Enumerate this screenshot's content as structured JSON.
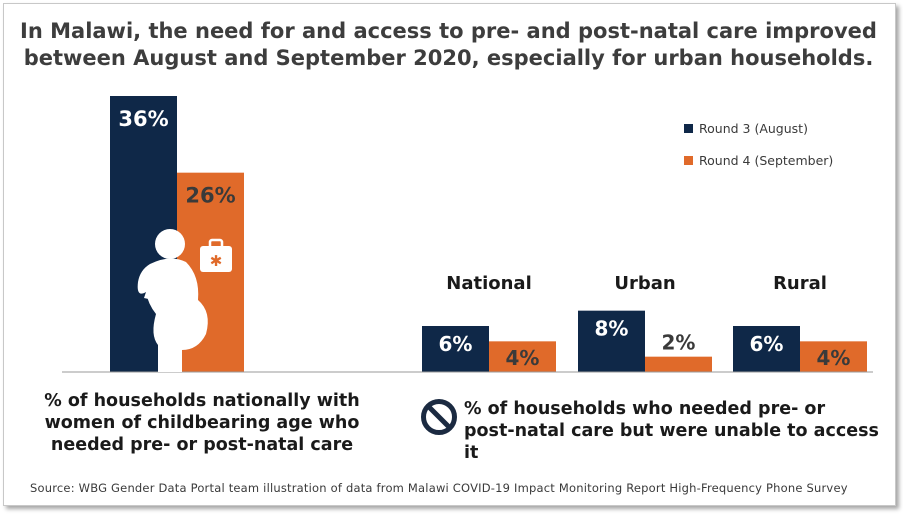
{
  "title_line1": "In Malawi, the need for and access to pre- and post-natal care improved",
  "title_line2": "between August and September 2020, especially for urban households.",
  "colors": {
    "round3": "#0f2848",
    "round4": "#e06a2a",
    "white": "#ffffff",
    "text": "#3a3a3a"
  },
  "legend": [
    {
      "label": "Round 3 (August)",
      "color": "#0f2848"
    },
    {
      "label": "Round 4 (September)",
      "color": "#e06a2a"
    }
  ],
  "caption_left": "% of households nationally with women of childbearing age who needed pre- or post-natal care",
  "caption_right": "% of households who needed pre- or post-natal care but were unable to access it",
  "source": "Source:  WBG Gender Data Portal team illustration  of data from  Malawi  COVID-19  Impact Monitoring Report High-Frequency  Phone Survey",
  "icons": [
    "pregnant-woman-icon",
    "medical-kit-icon",
    "no-access-icon"
  ],
  "chart_data": [
    {
      "type": "bar",
      "categories": [
        ""
      ],
      "series": [
        {
          "name": "Round 3 (August)",
          "values": [
            36
          ],
          "labels": [
            "36%"
          ]
        },
        {
          "name": "Round 4 (September)",
          "values": [
            26
          ],
          "labels": [
            "26%"
          ]
        }
      ],
      "ylim": [
        0,
        36
      ]
    },
    {
      "type": "bar",
      "categories": [
        "National",
        "Urban",
        "Rural"
      ],
      "series": [
        {
          "name": "Round 3 (August)",
          "values": [
            6,
            8,
            6
          ],
          "labels": [
            "6%",
            "8%",
            "6%"
          ]
        },
        {
          "name": "Round 4 (September)",
          "values": [
            4,
            2,
            4
          ],
          "labels": [
            "4%",
            "2%",
            "4%"
          ]
        }
      ],
      "ylim": [
        0,
        36
      ]
    }
  ]
}
